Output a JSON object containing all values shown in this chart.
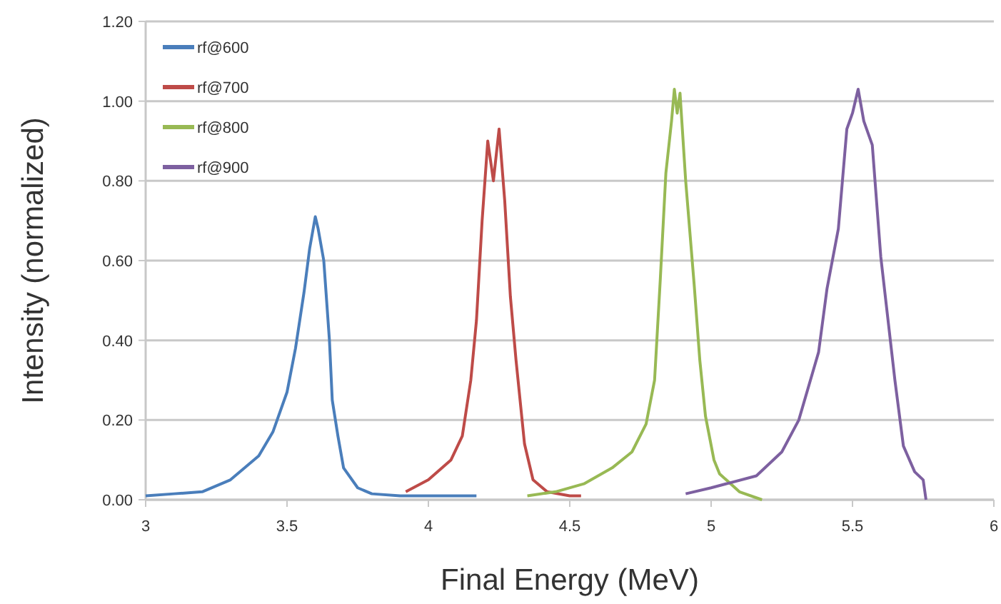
{
  "chart_data": {
    "type": "line",
    "xlabel": "Final Energy (MeV)",
    "ylabel": "Intensity (normalized)",
    "xlim": [
      3,
      6
    ],
    "xticks": [
      3,
      3.5,
      4,
      4.5,
      5,
      5.5,
      6
    ],
    "ylim": [
      0,
      1.2
    ],
    "yticks": [
      {
        "value": 0,
        "label": "0.00"
      },
      {
        "value": 0.2,
        "label": "0.20"
      },
      {
        "value": 0.4,
        "label": "0.40"
      },
      {
        "value": 0.6,
        "label": "0.60"
      },
      {
        "value": 0.8,
        "label": "0.80"
      },
      {
        "value": 1,
        "label": "1.00"
      },
      {
        "value": 1.2,
        "label": "1.20"
      }
    ],
    "grid": "y",
    "legend": "top left",
    "marker": "none",
    "line_style": "solid",
    "series": [
      {
        "name": "rf@600",
        "color": "#4a7ebb",
        "x": [
          3.0,
          3.1,
          3.2,
          3.3,
          3.4,
          3.45,
          3.5,
          3.53,
          3.56,
          3.58,
          3.6,
          3.61,
          3.63,
          3.65,
          3.66,
          3.68,
          3.7,
          3.75,
          3.8,
          3.9,
          4.0,
          4.17
        ],
        "values": [
          0.01,
          0.015,
          0.02,
          0.05,
          0.11,
          0.17,
          0.27,
          0.38,
          0.52,
          0.63,
          0.71,
          0.68,
          0.6,
          0.4,
          0.25,
          0.16,
          0.08,
          0.03,
          0.015,
          0.01,
          0.01,
          0.01
        ]
      },
      {
        "name": "rf@700",
        "color": "#be4b48",
        "x": [
          3.92,
          4.0,
          4.08,
          4.12,
          4.15,
          4.17,
          4.19,
          4.21,
          4.23,
          4.25,
          4.27,
          4.29,
          4.31,
          4.34,
          4.37,
          4.42,
          4.5,
          4.54
        ],
        "values": [
          0.02,
          0.05,
          0.1,
          0.16,
          0.3,
          0.45,
          0.7,
          0.9,
          0.8,
          0.93,
          0.75,
          0.51,
          0.35,
          0.14,
          0.05,
          0.02,
          0.01,
          0.01
        ]
      },
      {
        "name": "rf@800",
        "color": "#98b954",
        "x": [
          4.35,
          4.45,
          4.55,
          4.65,
          4.72,
          4.77,
          4.8,
          4.82,
          4.84,
          4.86,
          4.87,
          4.88,
          4.89,
          4.91,
          4.94,
          4.96,
          4.98,
          5.01,
          5.03,
          5.1,
          5.18
        ],
        "values": [
          0.01,
          0.02,
          0.04,
          0.08,
          0.12,
          0.19,
          0.3,
          0.55,
          0.82,
          0.95,
          1.03,
          0.97,
          1.02,
          0.8,
          0.54,
          0.35,
          0.21,
          0.1,
          0.065,
          0.02,
          0.0
        ]
      },
      {
        "name": "rf@900",
        "color": "#7d60a0",
        "x": [
          4.91,
          5.0,
          5.16,
          5.25,
          5.31,
          5.38,
          5.41,
          5.45,
          5.48,
          5.5,
          5.52,
          5.54,
          5.57,
          5.6,
          5.65,
          5.68,
          5.72,
          5.75,
          5.76
        ],
        "values": [
          0.015,
          0.03,
          0.06,
          0.12,
          0.2,
          0.37,
          0.53,
          0.68,
          0.93,
          0.97,
          1.03,
          0.95,
          0.89,
          0.61,
          0.3,
          0.135,
          0.07,
          0.05,
          0.0
        ]
      }
    ]
  }
}
